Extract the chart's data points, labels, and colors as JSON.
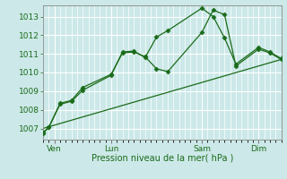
{
  "bg_color": "#cce8e8",
  "grid_color": "#ffffff",
  "line_color": "#1a6b1a",
  "marker_color": "#1a6b1a",
  "xlabel_text": "Pression niveau de la mer( hPa )",
  "xtick_labels": [
    "Ven",
    "Lun",
    "Sam",
    "Dim"
  ],
  "xtick_positions": [
    12,
    72,
    168,
    228
  ],
  "ylim": [
    1006.4,
    1013.6
  ],
  "yticks": [
    1007,
    1008,
    1009,
    1010,
    1011,
    1012,
    1013
  ],
  "xlim": [
    0,
    252
  ],
  "line1_x": [
    0,
    6,
    18,
    30,
    42,
    72,
    84,
    96,
    108,
    120,
    132,
    168,
    180,
    192,
    204,
    228,
    240,
    252
  ],
  "line1_y": [
    1006.8,
    1007.05,
    1008.35,
    1008.5,
    1009.2,
    1009.9,
    1011.05,
    1011.1,
    1010.85,
    1010.2,
    1010.05,
    1012.15,
    1013.35,
    1013.1,
    1010.35,
    1011.25,
    1011.05,
    1010.7
  ],
  "line2_x": [
    0,
    6,
    18,
    30,
    42,
    72,
    84,
    96,
    108,
    120,
    132,
    168,
    180,
    192,
    204,
    228,
    240,
    252
  ],
  "line2_y": [
    1006.75,
    1007.05,
    1008.3,
    1008.45,
    1009.05,
    1009.85,
    1011.1,
    1011.15,
    1010.8,
    1011.9,
    1012.25,
    1013.45,
    1013.0,
    1011.85,
    1010.45,
    1011.35,
    1011.1,
    1010.75
  ],
  "line3_x": [
    0,
    252
  ],
  "line3_y": [
    1007.0,
    1010.7
  ],
  "vline_positions": [
    12,
    72,
    168,
    228
  ],
  "vline_color": "#cc8888"
}
